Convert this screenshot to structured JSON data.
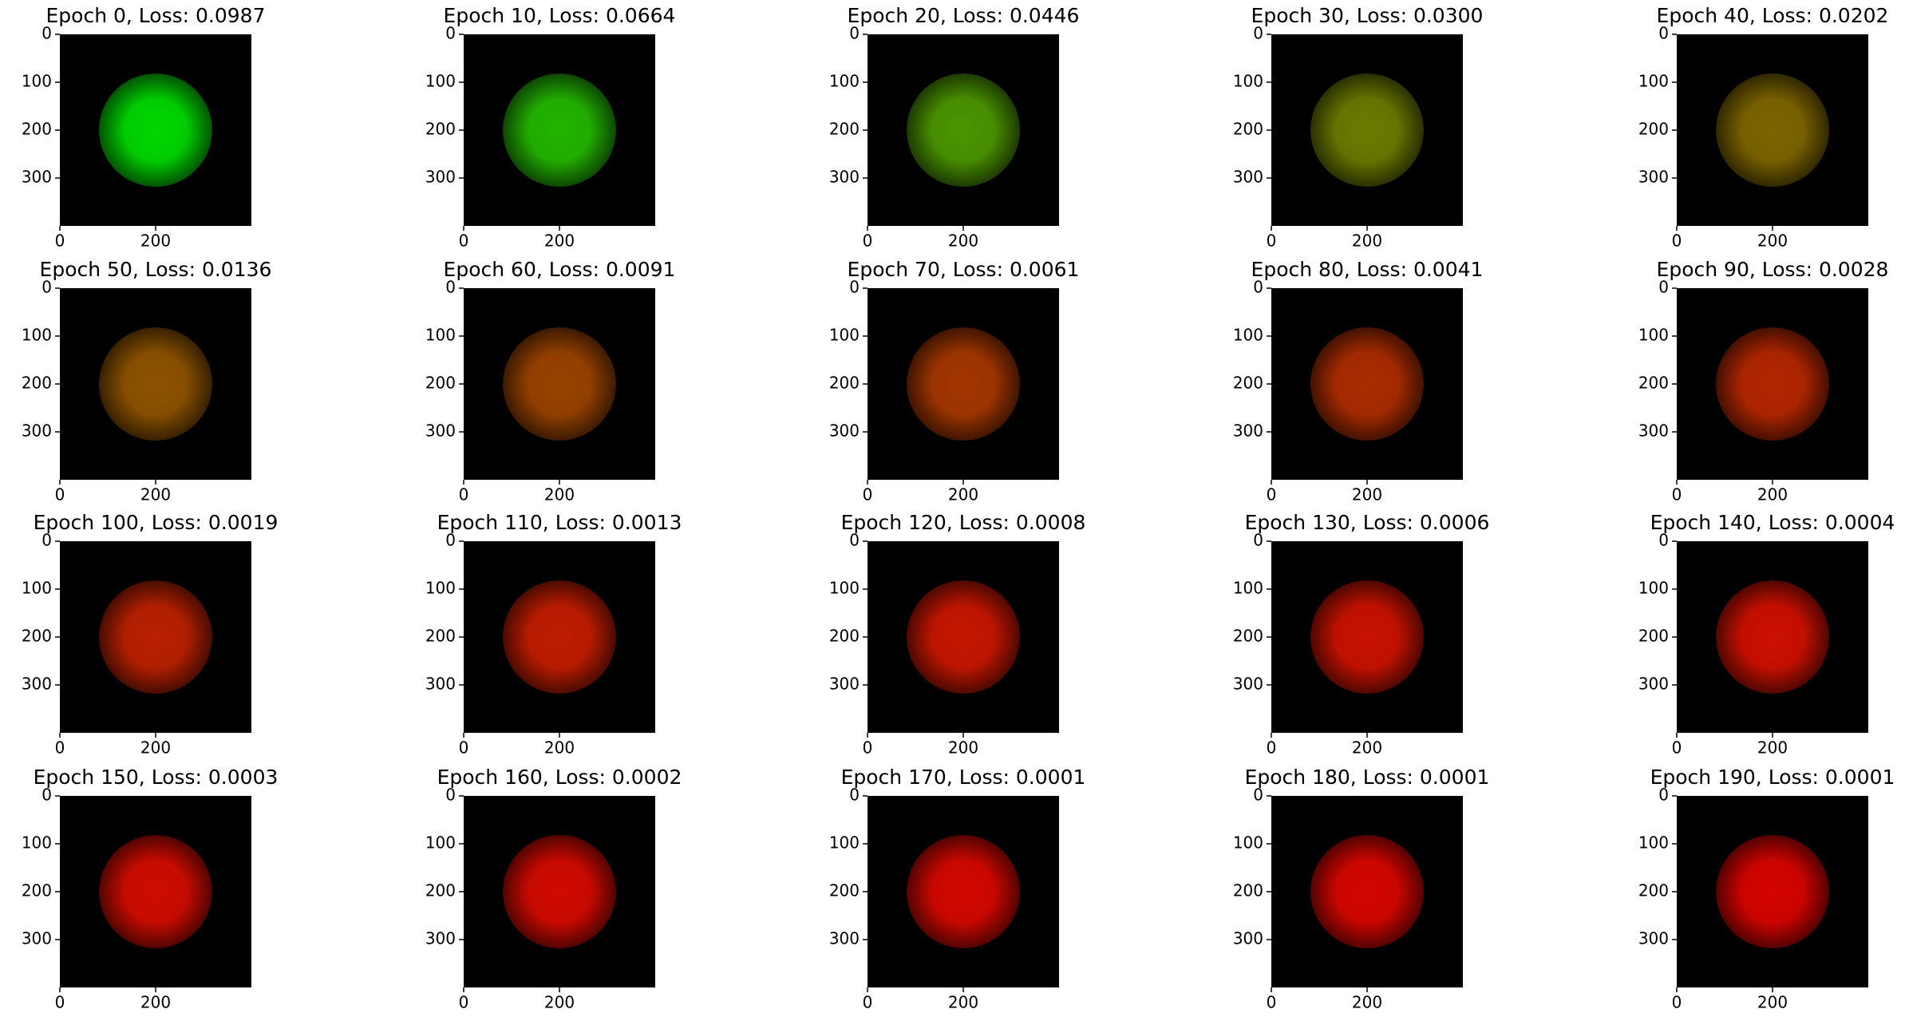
{
  "chart_data": [
    {
      "type": "image",
      "title": "Epoch 0, Loss: 0.0987",
      "color": "#00d600",
      "xlim": [
        0,
        400
      ],
      "ylim": [
        400,
        0
      ],
      "xticks": [
        0,
        200
      ],
      "yticks": [
        0,
        100,
        200,
        300
      ]
    },
    {
      "type": "image",
      "title": "Epoch 10, Loss: 0.0664",
      "color": "#22b400",
      "xlim": [
        0,
        400
      ],
      "ylim": [
        400,
        0
      ],
      "xticks": [
        0,
        200
      ],
      "yticks": [
        0,
        100,
        200,
        300
      ]
    },
    {
      "type": "image",
      "title": "Epoch 20, Loss: 0.0446",
      "color": "#4a9400",
      "xlim": [
        0,
        400
      ],
      "ylim": [
        400,
        0
      ],
      "xticks": [
        0,
        200
      ],
      "yticks": [
        0,
        100,
        200,
        300
      ]
    },
    {
      "type": "image",
      "title": "Epoch 30, Loss: 0.0300",
      "color": "#6a7a00",
      "xlim": [
        0,
        400
      ],
      "ylim": [
        400,
        0
      ],
      "xticks": [
        0,
        200
      ],
      "yticks": [
        0,
        100,
        200,
        300
      ]
    },
    {
      "type": "image",
      "title": "Epoch 40, Loss: 0.0202",
      "color": "#7c6400",
      "xlim": [
        0,
        400
      ],
      "ylim": [
        400,
        0
      ],
      "xticks": [
        0,
        200
      ],
      "yticks": [
        0,
        100,
        200,
        300
      ]
    },
    {
      "type": "image",
      "title": "Epoch 50, Loss: 0.0136",
      "color": "#8c5200",
      "xlim": [
        0,
        400
      ],
      "ylim": [
        400,
        0
      ],
      "xticks": [
        0,
        200
      ],
      "yticks": [
        0,
        100,
        200,
        300
      ]
    },
    {
      "type": "image",
      "title": "Epoch 60, Loss: 0.0091",
      "color": "#984200",
      "xlim": [
        0,
        400
      ],
      "ylim": [
        400,
        0
      ],
      "xticks": [
        0,
        200
      ],
      "yticks": [
        0,
        100,
        200,
        300
      ]
    },
    {
      "type": "image",
      "title": "Epoch 70, Loss: 0.0061",
      "color": "#a23600",
      "xlim": [
        0,
        400
      ],
      "ylim": [
        400,
        0
      ],
      "xticks": [
        0,
        200
      ],
      "yticks": [
        0,
        100,
        200,
        300
      ]
    },
    {
      "type": "image",
      "title": "Epoch 80, Loss: 0.0041",
      "color": "#aa2c00",
      "xlim": [
        0,
        400
      ],
      "ylim": [
        400,
        0
      ],
      "xticks": [
        0,
        200
      ],
      "yticks": [
        0,
        100,
        200,
        300
      ]
    },
    {
      "type": "image",
      "title": "Epoch 90, Loss: 0.0028",
      "color": "#b22600",
      "xlim": [
        0,
        400
      ],
      "ylim": [
        400,
        0
      ],
      "xticks": [
        0,
        200
      ],
      "yticks": [
        0,
        100,
        200,
        300
      ]
    },
    {
      "type": "image",
      "title": "Epoch 100, Loss: 0.0019",
      "color": "#b82000",
      "xlim": [
        0,
        400
      ],
      "ylim": [
        400,
        0
      ],
      "xticks": [
        0,
        200
      ],
      "yticks": [
        0,
        100,
        200,
        300
      ]
    },
    {
      "type": "image",
      "title": "Epoch 110, Loss: 0.0013",
      "color": "#be1c00",
      "xlim": [
        0,
        400
      ],
      "ylim": [
        400,
        0
      ],
      "xticks": [
        0,
        200
      ],
      "yticks": [
        0,
        100,
        200,
        300
      ]
    },
    {
      "type": "image",
      "title": "Epoch 120, Loss: 0.0008",
      "color": "#c41600",
      "xlim": [
        0,
        400
      ],
      "ylim": [
        400,
        0
      ],
      "xticks": [
        0,
        200
      ],
      "yticks": [
        0,
        100,
        200,
        300
      ]
    },
    {
      "type": "image",
      "title": "Epoch 130, Loss: 0.0006",
      "color": "#c81200",
      "xlim": [
        0,
        400
      ],
      "ylim": [
        400,
        0
      ],
      "xticks": [
        0,
        200
      ],
      "yticks": [
        0,
        100,
        200,
        300
      ]
    },
    {
      "type": "image",
      "title": "Epoch 140, Loss: 0.0004",
      "color": "#cc1000",
      "xlim": [
        0,
        400
      ],
      "ylim": [
        400,
        0
      ],
      "xticks": [
        0,
        200
      ],
      "yticks": [
        0,
        100,
        200,
        300
      ]
    },
    {
      "type": "image",
      "title": "Epoch 150, Loss: 0.0003",
      "color": "#ce0c00",
      "xlim": [
        0,
        400
      ],
      "ylim": [
        400,
        0
      ],
      "xticks": [
        0,
        200
      ],
      "yticks": [
        0,
        100,
        200,
        300
      ]
    },
    {
      "type": "image",
      "title": "Epoch 160, Loss: 0.0002",
      "color": "#d00a00",
      "xlim": [
        0,
        400
      ],
      "ylim": [
        400,
        0
      ],
      "xticks": [
        0,
        200
      ],
      "yticks": [
        0,
        100,
        200,
        300
      ]
    },
    {
      "type": "image",
      "title": "Epoch 170, Loss: 0.0001",
      "color": "#d20800",
      "xlim": [
        0,
        400
      ],
      "ylim": [
        400,
        0
      ],
      "xticks": [
        0,
        200
      ],
      "yticks": [
        0,
        100,
        200,
        300
      ]
    },
    {
      "type": "image",
      "title": "Epoch 180, Loss: 0.0001",
      "color": "#d30600",
      "xlim": [
        0,
        400
      ],
      "ylim": [
        400,
        0
      ],
      "xticks": [
        0,
        200
      ],
      "yticks": [
        0,
        100,
        200,
        300
      ]
    },
    {
      "type": "image",
      "title": "Epoch 190, Loss: 0.0001",
      "color": "#d40400",
      "xlim": [
        0,
        400
      ],
      "ylim": [
        400,
        0
      ],
      "xticks": [
        0,
        200
      ],
      "yticks": [
        0,
        100,
        200,
        300
      ]
    }
  ]
}
